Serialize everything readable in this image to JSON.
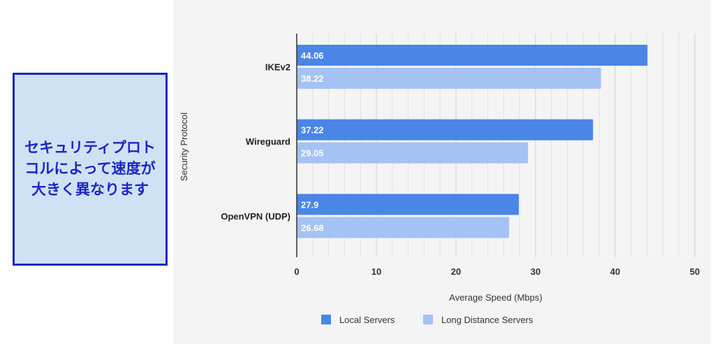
{
  "callout": {
    "text": "セキュリティプロトコルによって速度が大きく異なります",
    "border_color": "#1c25c9",
    "background": "#cfe2f3"
  },
  "chart_data": {
    "type": "bar",
    "orientation": "horizontal",
    "categories": [
      "IKEv2",
      "Wireguard",
      "OpenVPN (UDP)"
    ],
    "series": [
      {
        "name": "Local Servers",
        "values": [
          44.06,
          37.22,
          27.9
        ],
        "color": "#4a86e8"
      },
      {
        "name": "Long Distance Servers",
        "values": [
          38.22,
          29.05,
          26.68
        ],
        "color": "#a4c2f4"
      }
    ],
    "xlabel": "Average Speed (Mbps)",
    "ylabel": "Security Protocol",
    "xlim": [
      0,
      50
    ],
    "xticks": [
      0,
      10,
      20,
      30,
      40,
      50
    ],
    "grid": true,
    "legend_position": "bottom"
  }
}
